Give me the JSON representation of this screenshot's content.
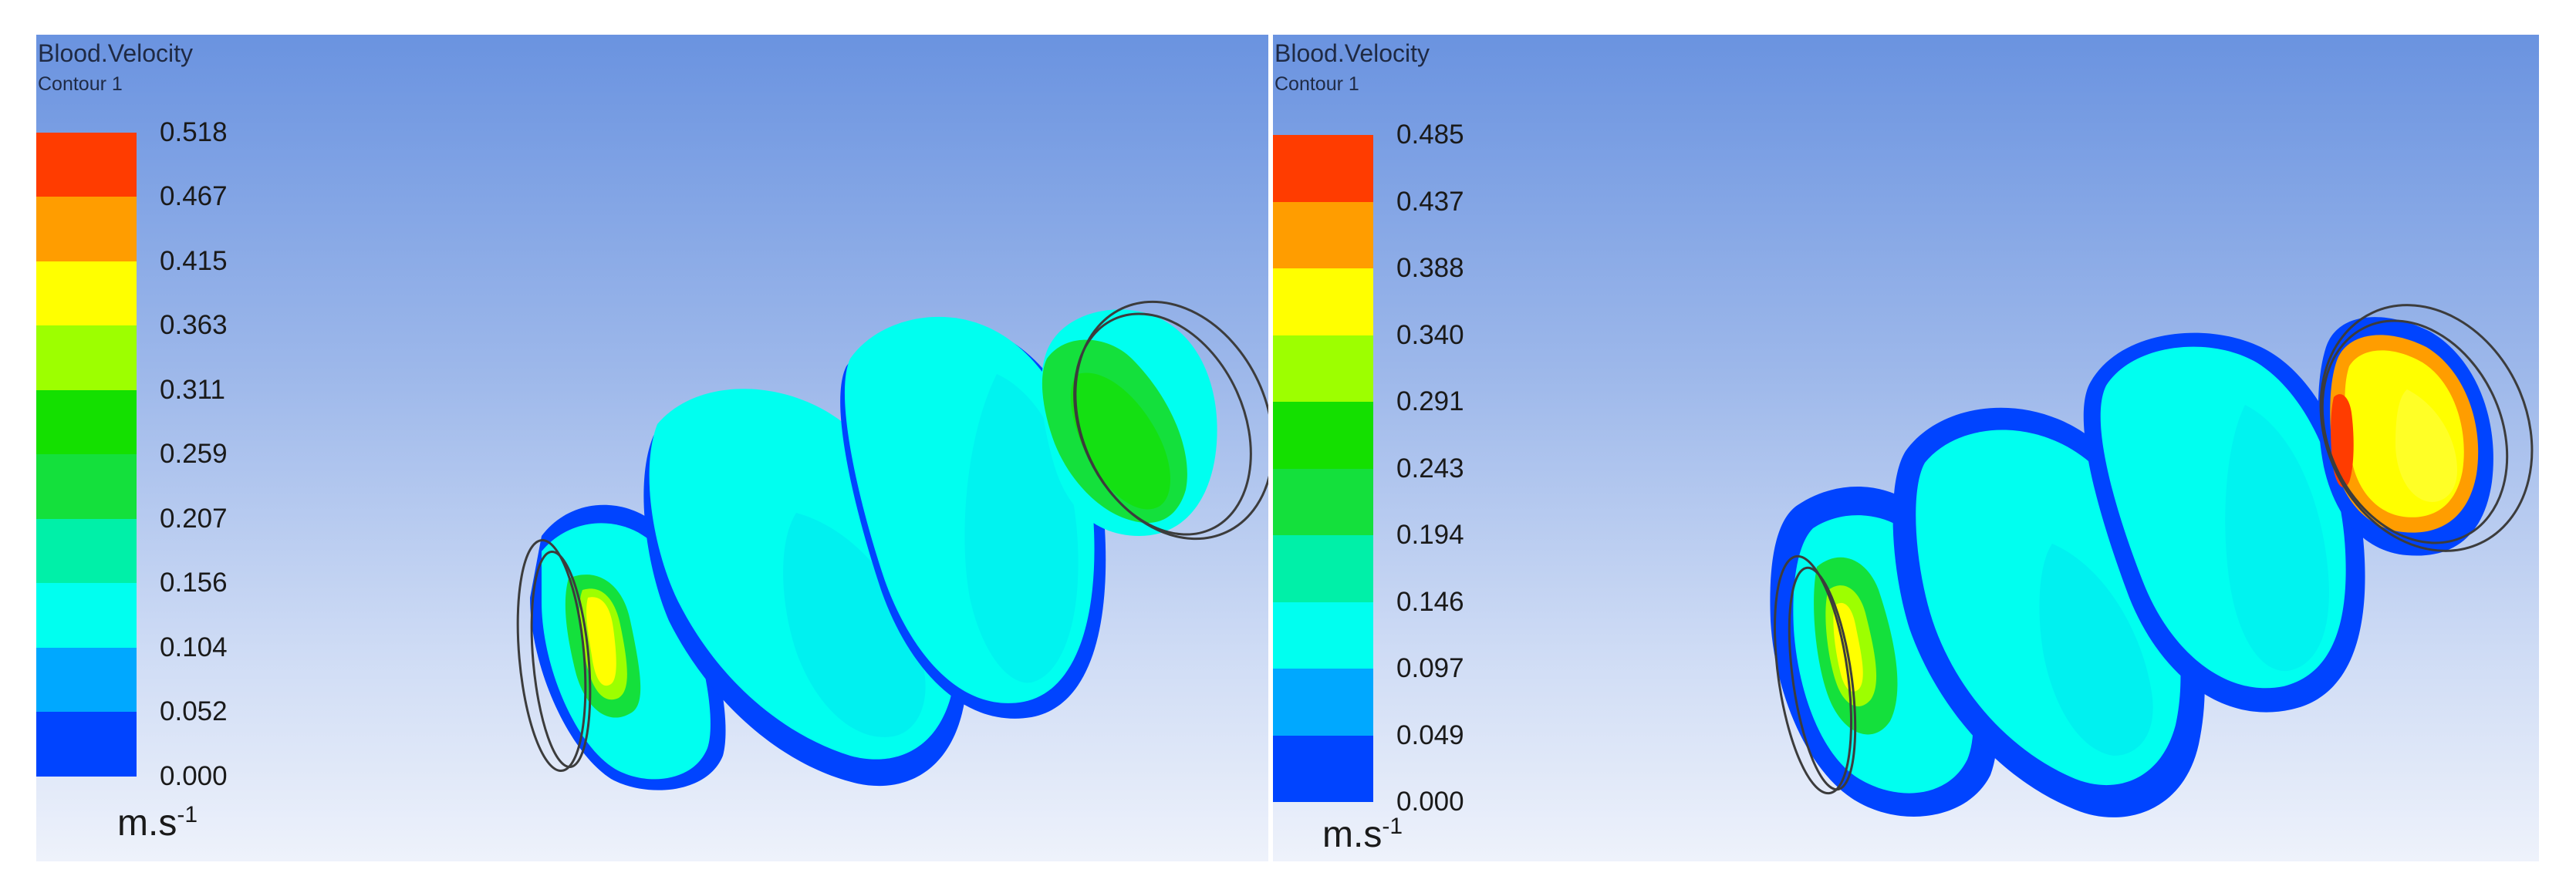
{
  "panels": [
    {
      "title": "Blood.Velocity",
      "subtitle": "Contour 1",
      "unit": "m.s",
      "unit_exp": "-1",
      "levels": [
        "0.518",
        "0.467",
        "0.415",
        "0.363",
        "0.311",
        "0.259",
        "0.207",
        "0.156",
        "0.104",
        "0.052",
        "0.000"
      ]
    },
    {
      "title": "Blood.Velocity",
      "subtitle": "Contour 1",
      "unit": "m.s",
      "unit_exp": "-1",
      "levels": [
        "0.485",
        "0.437",
        "0.388",
        "0.340",
        "0.291",
        "0.243",
        "0.194",
        "0.146",
        "0.097",
        "0.049",
        "0.000"
      ]
    }
  ],
  "colors": {
    "bands_top_to_bottom": [
      "#ff3c00",
      "#ff9d00",
      "#ffff00",
      "#9dff00",
      "#14e000",
      "#14e03c",
      "#00f0a8",
      "#00fff0",
      "#00a8ff",
      "#0044ff"
    ],
    "outline": "#3c3c3c"
  }
}
